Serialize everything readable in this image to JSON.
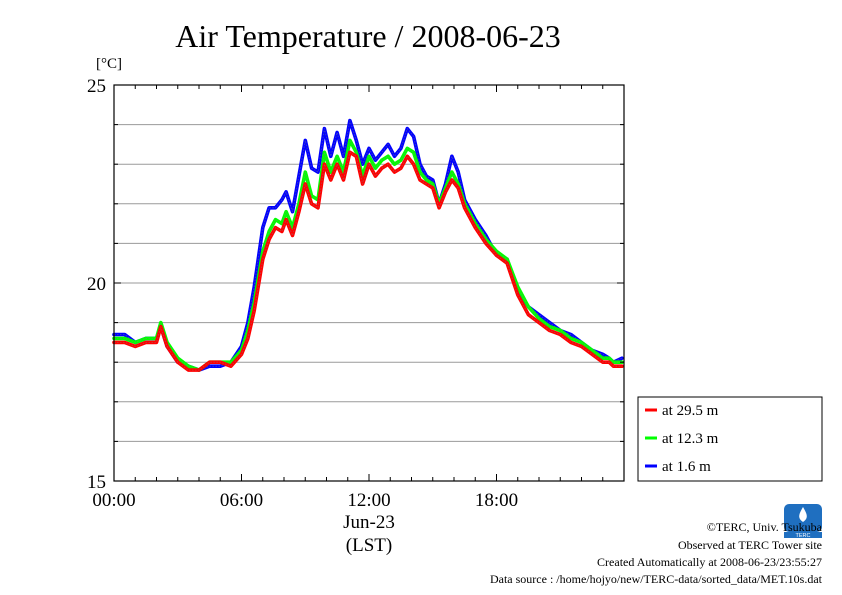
{
  "chart_data": {
    "type": "line",
    "title": "Air Temperature / 2008-06-23",
    "ylabel_unit": "[°C]",
    "xlabel_date": "Jun-23",
    "xlabel": "(LST)",
    "xlim": [
      0,
      24
    ],
    "ylim": [
      15,
      25
    ],
    "x_tick_values": [
      0,
      6,
      12,
      18
    ],
    "x_tick_labels": [
      "00:00",
      "06:00",
      "12:00",
      "18:00"
    ],
    "y_tick_values": [
      15,
      20,
      25
    ],
    "y_tick_labels": [
      "15",
      "20",
      "25"
    ],
    "grid": true,
    "legend_position": "right",
    "x": [
      0,
      0.5,
      1,
      1.5,
      2,
      2.2,
      2.5,
      3,
      3.5,
      4,
      4.5,
      5,
      5.5,
      6,
      6.3,
      6.6,
      7,
      7.3,
      7.6,
      7.9,
      8.1,
      8.4,
      8.7,
      9,
      9.3,
      9.6,
      9.9,
      10.2,
      10.5,
      10.8,
      11.1,
      11.4,
      11.7,
      12,
      12.3,
      12.6,
      12.9,
      13.2,
      13.5,
      13.8,
      14.1,
      14.4,
      14.7,
      15,
      15.3,
      15.6,
      15.9,
      16.2,
      16.5,
      17,
      17.5,
      18,
      18.5,
      19,
      19.5,
      20,
      20.5,
      21,
      21.5,
      22,
      22.5,
      23,
      23.3,
      23.5,
      23.9
    ],
    "series": [
      {
        "name": "at 29.5 m",
        "color": "#ff0000",
        "values": [
          18.5,
          18.5,
          18.4,
          18.5,
          18.5,
          18.9,
          18.4,
          18.0,
          17.8,
          17.8,
          18.0,
          18.0,
          17.9,
          18.2,
          18.6,
          19.3,
          20.6,
          21.1,
          21.4,
          21.3,
          21.6,
          21.2,
          21.8,
          22.5,
          22.0,
          21.9,
          23.0,
          22.6,
          23.0,
          22.6,
          23.3,
          23.2,
          22.5,
          23.0,
          22.7,
          22.9,
          23.0,
          22.8,
          22.9,
          23.2,
          23.0,
          22.6,
          22.5,
          22.4,
          21.9,
          22.3,
          22.6,
          22.4,
          21.9,
          21.4,
          21.0,
          20.7,
          20.5,
          19.7,
          19.2,
          19.0,
          18.8,
          18.7,
          18.5,
          18.4,
          18.2,
          18.0,
          18.0,
          17.9,
          17.9
        ]
      },
      {
        "name": "at 12.3 m",
        "color": "#00ff00",
        "values": [
          18.6,
          18.6,
          18.5,
          18.6,
          18.6,
          19.0,
          18.5,
          18.1,
          17.9,
          17.8,
          18.0,
          18.0,
          18.0,
          18.3,
          18.8,
          19.5,
          20.8,
          21.3,
          21.6,
          21.5,
          21.8,
          21.4,
          22.0,
          22.8,
          22.2,
          22.1,
          23.3,
          22.8,
          23.2,
          22.8,
          23.6,
          23.3,
          22.7,
          23.2,
          22.9,
          23.1,
          23.2,
          23.0,
          23.1,
          23.4,
          23.3,
          22.8,
          22.6,
          22.5,
          22.0,
          22.4,
          22.8,
          22.5,
          22.0,
          21.5,
          21.1,
          20.8,
          20.6,
          19.9,
          19.4,
          19.1,
          18.9,
          18.8,
          18.6,
          18.5,
          18.3,
          18.1,
          18.1,
          18.0,
          18.0
        ]
      },
      {
        "name": "at 1.6 m",
        "color": "#0000ff",
        "values": [
          18.7,
          18.7,
          18.5,
          18.6,
          18.6,
          18.9,
          18.4,
          18.0,
          17.9,
          17.8,
          17.9,
          17.9,
          18.0,
          18.4,
          19.0,
          19.9,
          21.4,
          21.9,
          21.9,
          22.1,
          22.3,
          21.8,
          22.7,
          23.6,
          22.9,
          22.8,
          23.9,
          23.2,
          23.8,
          23.2,
          24.1,
          23.6,
          23.0,
          23.4,
          23.1,
          23.3,
          23.5,
          23.2,
          23.4,
          23.9,
          23.7,
          23.0,
          22.7,
          22.6,
          22.0,
          22.5,
          23.2,
          22.8,
          22.1,
          21.6,
          21.2,
          20.7,
          20.6,
          19.8,
          19.4,
          19.2,
          19.0,
          18.8,
          18.7,
          18.5,
          18.3,
          18.2,
          18.1,
          18.0,
          18.1
        ]
      }
    ]
  },
  "footer": {
    "copyright": "©TERC, Univ. Tsukuba",
    "observed": "Observed at TERC Tower site",
    "created": "Created Automatically at 2008-06-23/23:55:27",
    "source": "Data source : /home/hojyo/new/TERC-data/sorted_data/MET.10s.dat",
    "logo_text": "TERC"
  }
}
